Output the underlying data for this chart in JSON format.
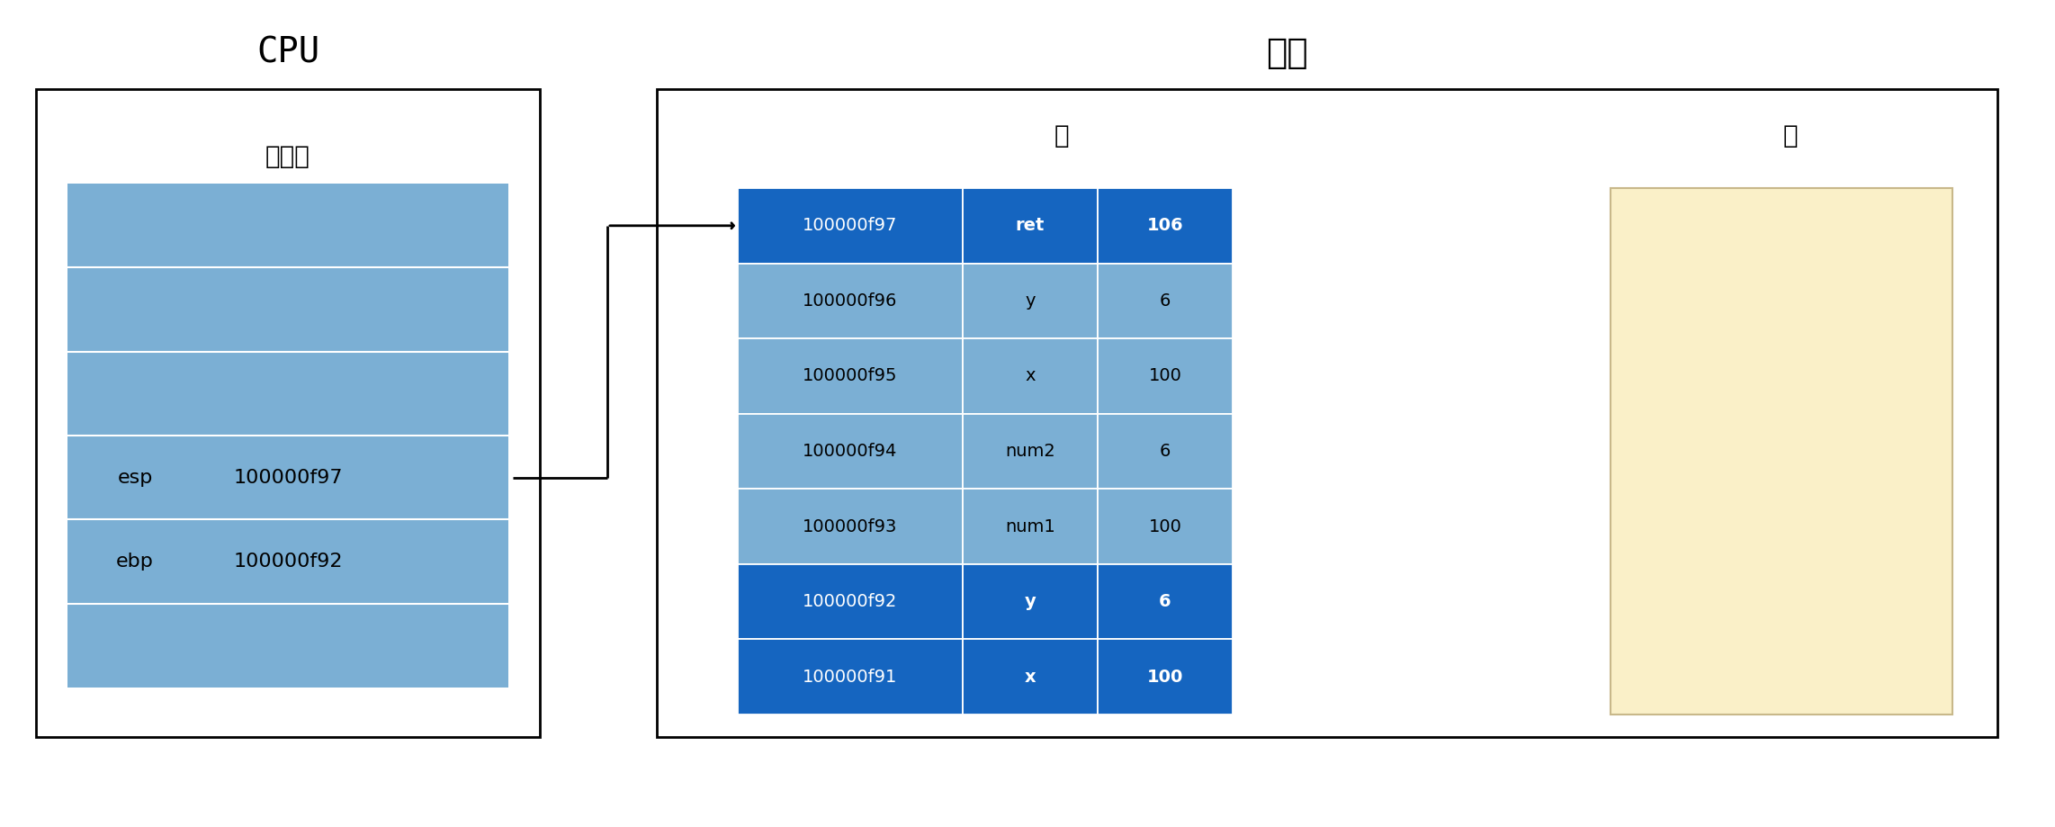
{
  "title_cpu": "CPU",
  "title_memory": "内存",
  "label_registers": "寄存器",
  "label_stack": "栈",
  "label_heap": "堆",
  "esp_label": "esp",
  "ebp_label": "ebp",
  "esp_value": "100000f97",
  "ebp_value": "100000f92",
  "stack_rows": [
    {
      "addr": "100000f97",
      "name": "ret",
      "value": "106",
      "dark": true
    },
    {
      "addr": "100000f96",
      "name": "y",
      "value": "6",
      "dark": false
    },
    {
      "addr": "100000f95",
      "name": "x",
      "value": "100",
      "dark": false
    },
    {
      "addr": "100000f94",
      "name": "num2",
      "value": "6",
      "dark": false
    },
    {
      "addr": "100000f93",
      "name": "num1",
      "value": "100",
      "dark": false
    },
    {
      "addr": "100000f92",
      "name": "y",
      "value": "6",
      "dark": true
    },
    {
      "addr": "100000f91",
      "name": "x",
      "value": "100",
      "dark": true
    }
  ],
  "color_light_blue": "#7BAFD4",
  "color_dark_blue": "#1565C0",
  "color_heap": "#FAF0C8",
  "color_white": "#FFFFFF",
  "color_black": "#000000",
  "bg_color": "#FFFFFF"
}
